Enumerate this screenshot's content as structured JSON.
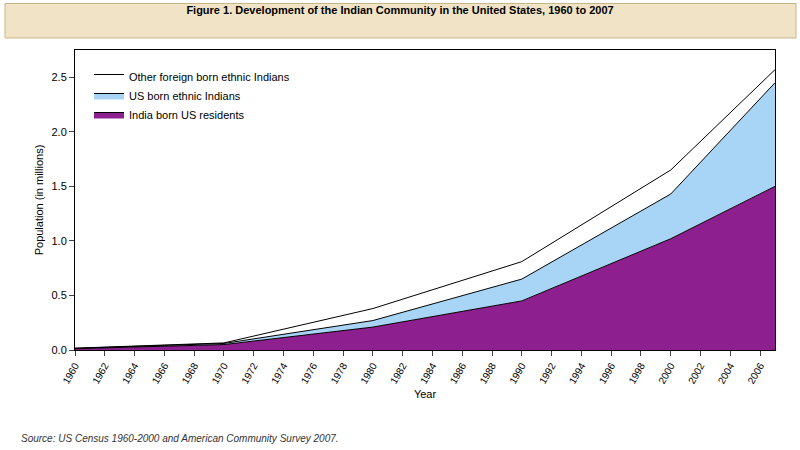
{
  "chart_data": {
    "type": "area",
    "title": "Figure 1. Development of the Indian Community in the United States, 1960 to 2007",
    "x_label": "Year",
    "y_label": "Population (in millions)",
    "annotations": [
      "Source: US Census 1960-2000 and American Community Survey 2007."
    ],
    "stacked": true,
    "legend": "top-left",
    "grid": false,
    "x": [
      1960,
      1970,
      1980,
      1990,
      2000,
      2007
    ],
    "series": [
      {
        "name": "India born US residents",
        "color": "#8e1f8e",
        "values": [
          0.012,
          0.05,
          0.21,
          0.45,
          1.02,
          1.5
        ]
      },
      {
        "name": "US born ethnic Indians",
        "color": "#a8d4f5",
        "values": [
          0.003,
          0.01,
          0.06,
          0.2,
          0.41,
          0.95
        ]
      },
      {
        "name": "Other foreign born ethnic Indians",
        "color": "#ffffff",
        "values": [
          0.002,
          0.005,
          0.11,
          0.16,
          0.22,
          0.12
        ]
      }
    ],
    "xlim": [
      1960,
      2007
    ],
    "xticks": [
      1960,
      1962,
      1964,
      1966,
      1968,
      1970,
      1972,
      1974,
      1976,
      1978,
      1980,
      1982,
      1984,
      1986,
      1988,
      1990,
      1992,
      1994,
      1996,
      1998,
      2000,
      2002,
      2004,
      2006
    ],
    "ylim": [
      0,
      2.75
    ],
    "yticks": [
      {
        "value": 0,
        "label": "0.0"
      },
      0.5,
      {
        "value": 1,
        "label": "1.0"
      },
      1.5,
      {
        "value": 2,
        "label": "2.0"
      },
      2.5
    ]
  }
}
